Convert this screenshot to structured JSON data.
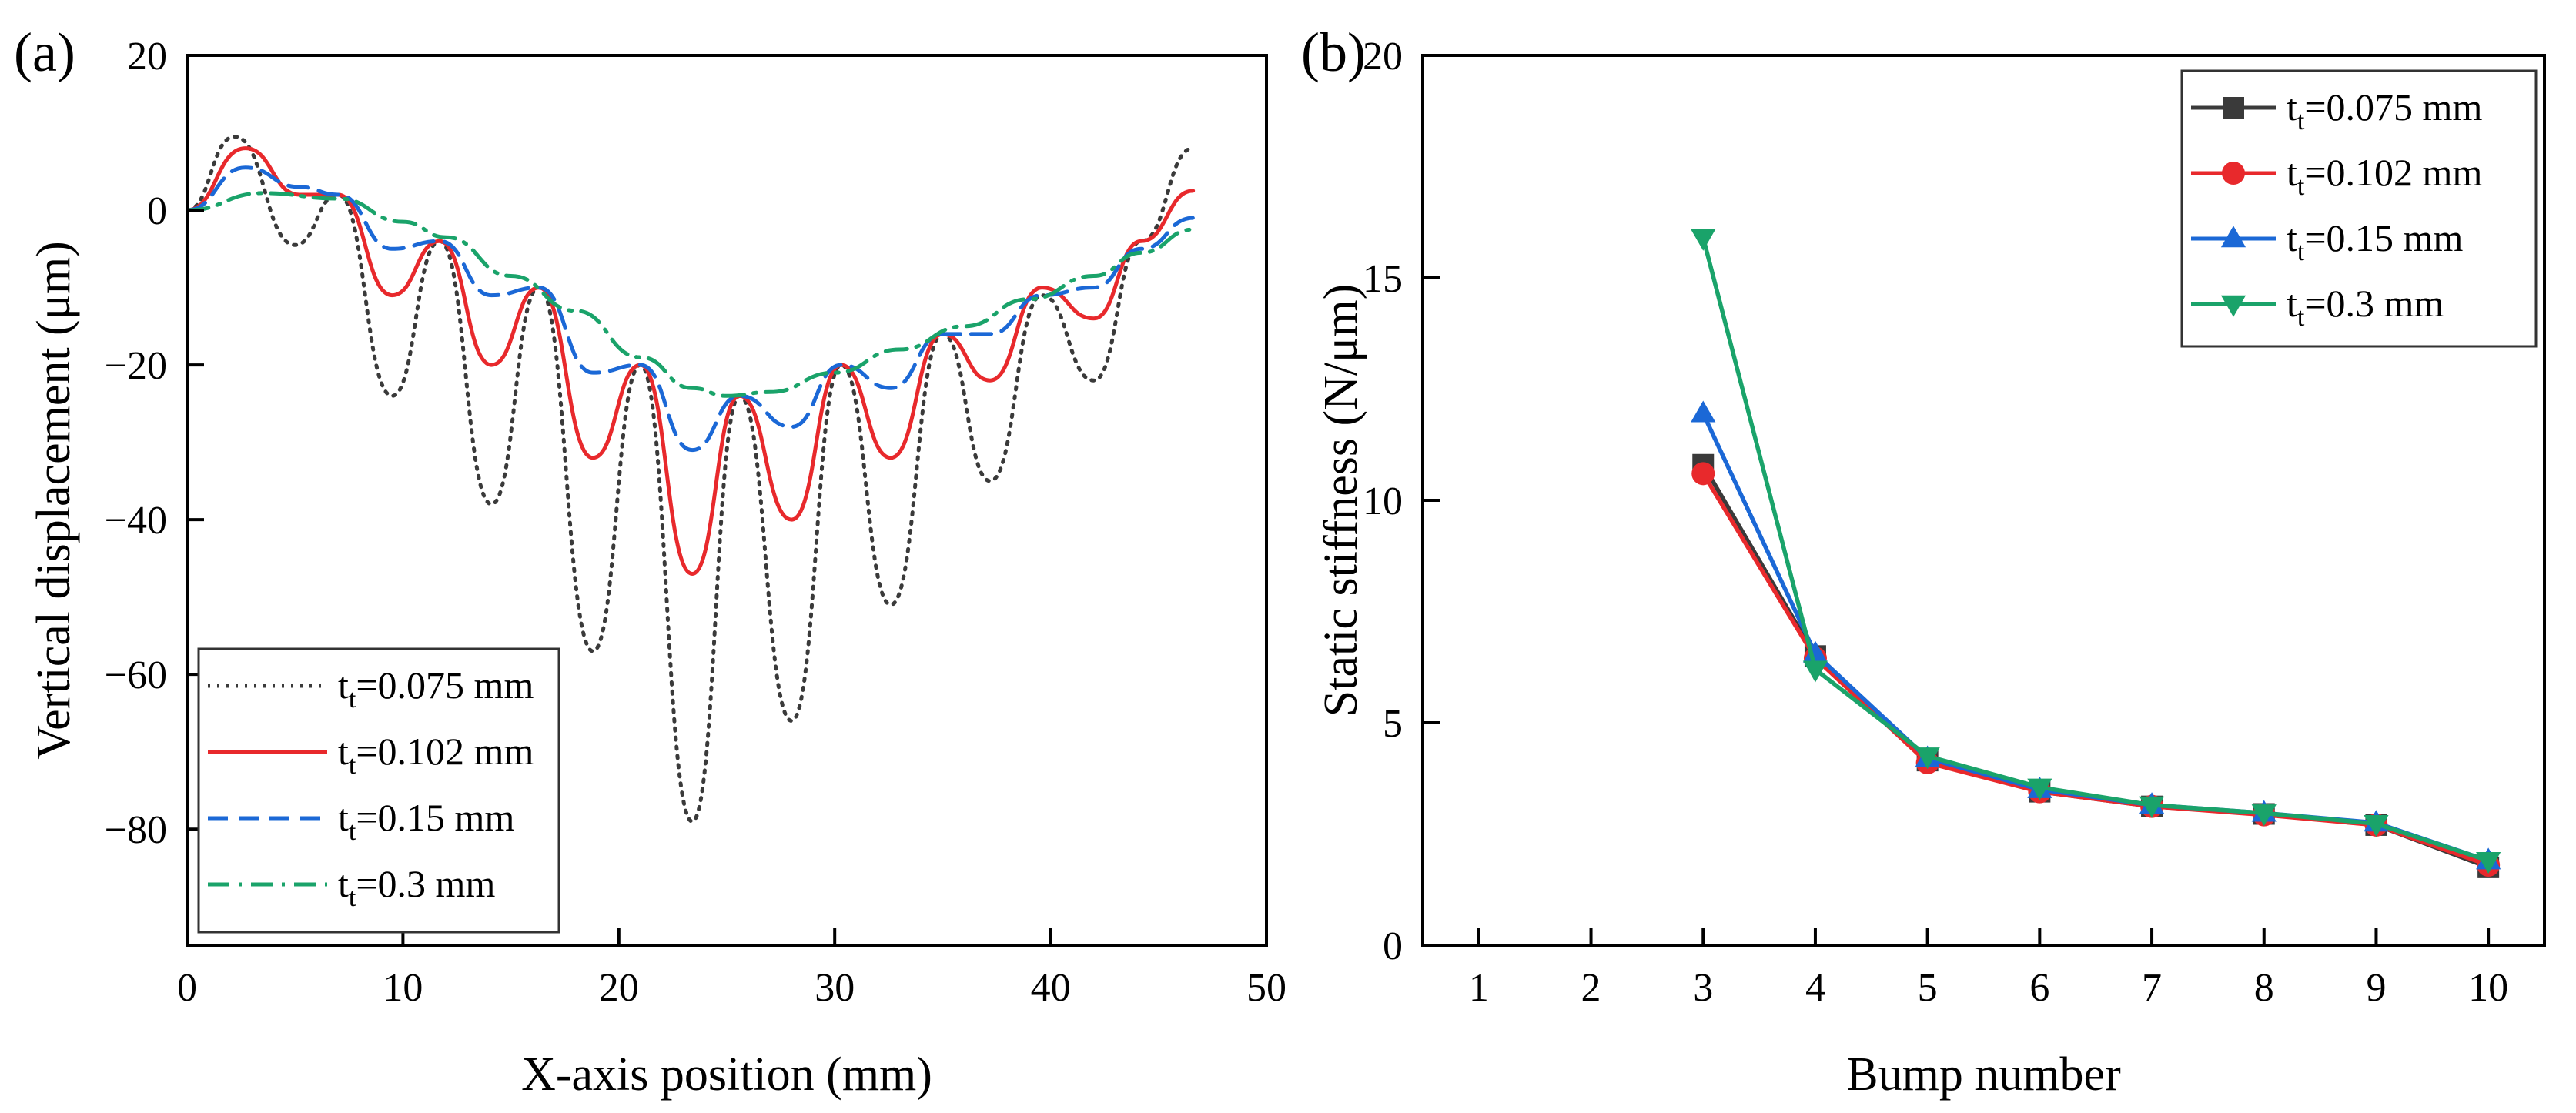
{
  "chart_data": [
    {
      "type": "line",
      "panel_label": "(a)",
      "title": "",
      "xlabel": "X-axis position (mm)",
      "ylabel": "Vertical displacement (μm)",
      "xlim": [
        0,
        50
      ],
      "ylim": [
        -95,
        20
      ],
      "xticks": [
        0,
        10,
        20,
        30,
        40,
        50
      ],
      "yticks": [
        20,
        0,
        -20,
        -40,
        -60,
        -80
      ],
      "xtick_labels": [
        "0",
        "10",
        "20",
        "30",
        "40",
        "50"
      ],
      "ytick_labels": [
        "20",
        "0",
        "−20",
        "−40",
        "−60",
        "−80"
      ],
      "grid": false,
      "legend_position": "lower-left",
      "series": [
        {
          "name": "tt=0.075 mm",
          "legend_main": "t",
          "legend_sub": "t",
          "legend_rest": "=0.075 mm",
          "color": "#3a3a3a",
          "style": "dotted",
          "points": [
            [
              0,
              0
            ],
            [
              2.2,
              9.5
            ],
            [
              5,
              -4.5
            ],
            [
              7,
              2
            ],
            [
              9.5,
              -24
            ],
            [
              11.7,
              -4
            ],
            [
              14.1,
              -38
            ],
            [
              16.3,
              -10
            ],
            [
              18.8,
              -57
            ],
            [
              21,
              -20
            ],
            [
              23.4,
              -79
            ],
            [
              25.6,
              -24
            ],
            [
              28,
              -66
            ],
            [
              30.3,
              -20
            ],
            [
              32.6,
              -51
            ],
            [
              35,
              -16
            ],
            [
              37.2,
              -35
            ],
            [
              39.6,
              -11
            ],
            [
              42,
              -22
            ],
            [
              44.2,
              -4
            ],
            [
              46.6,
              8
            ]
          ]
        },
        {
          "name": "tt=0.102 mm",
          "legend_main": "t",
          "legend_sub": "t",
          "legend_rest": "=0.102 mm",
          "color": "#e8292c",
          "style": "solid",
          "points": [
            [
              0,
              0
            ],
            [
              2.7,
              8
            ],
            [
              5.2,
              2
            ],
            [
              7,
              2
            ],
            [
              9.5,
              -11
            ],
            [
              11.7,
              -4
            ],
            [
              14.1,
              -20
            ],
            [
              16.3,
              -10
            ],
            [
              18.8,
              -32
            ],
            [
              21,
              -20
            ],
            [
              23.4,
              -47
            ],
            [
              25.6,
              -24
            ],
            [
              28,
              -40
            ],
            [
              30.3,
              -20
            ],
            [
              32.6,
              -32
            ],
            [
              35,
              -16
            ],
            [
              37.2,
              -22
            ],
            [
              39.6,
              -10
            ],
            [
              42,
              -14
            ],
            [
              44.2,
              -4
            ],
            [
              46.6,
              2.5
            ]
          ]
        },
        {
          "name": "tt=0.15 mm",
          "legend_main": "t",
          "legend_sub": "t",
          "legend_rest": "=0.15 mm",
          "color": "#1b68d6",
          "style": "dashed",
          "points": [
            [
              0,
              0
            ],
            [
              2.7,
              5.5
            ],
            [
              5.2,
              3
            ],
            [
              7,
              2
            ],
            [
              9.5,
              -5
            ],
            [
              11.7,
              -4
            ],
            [
              14.1,
              -11
            ],
            [
              16.3,
              -10
            ],
            [
              18.8,
              -21
            ],
            [
              21,
              -20
            ],
            [
              23.4,
              -31
            ],
            [
              25.6,
              -24
            ],
            [
              28,
              -28
            ],
            [
              30.3,
              -20
            ],
            [
              32.6,
              -23
            ],
            [
              35,
              -16
            ],
            [
              37.2,
              -16
            ],
            [
              39.6,
              -11
            ],
            [
              42,
              -10
            ],
            [
              44.2,
              -5
            ],
            [
              46.6,
              -1
            ]
          ]
        },
        {
          "name": "tt=0.3 mm",
          "legend_main": "t",
          "legend_sub": "t",
          "legend_rest": "=0.3 mm",
          "color": "#1aa36a",
          "style": "dashdot",
          "points": [
            [
              0,
              0
            ],
            [
              3.5,
              2.2
            ],
            [
              7,
              1.5
            ],
            [
              10,
              -1.5
            ],
            [
              12,
              -3.5
            ],
            [
              15,
              -8.5
            ],
            [
              18,
              -13
            ],
            [
              21,
              -19
            ],
            [
              23.4,
              -23
            ],
            [
              25,
              -24
            ],
            [
              27,
              -23.5
            ],
            [
              30,
              -21
            ],
            [
              33,
              -18
            ],
            [
              36,
              -15
            ],
            [
              39,
              -11.5
            ],
            [
              42,
              -8.5
            ],
            [
              44.2,
              -5.5
            ],
            [
              46.6,
              -2.5
            ]
          ]
        }
      ]
    },
    {
      "type": "line",
      "panel_label": "(b)",
      "title": "",
      "xlabel": "Bump number",
      "ylabel": "Static stiffness (N/μm)",
      "xlim": [
        0.5,
        10.5
      ],
      "ylim": [
        0,
        20
      ],
      "xticks": [
        1,
        2,
        3,
        4,
        5,
        6,
        7,
        8,
        9,
        10
      ],
      "yticks": [
        0,
        5,
        10,
        15,
        20
      ],
      "xtick_labels": [
        "1",
        "2",
        "3",
        "4",
        "5",
        "6",
        "7",
        "8",
        "9",
        "10"
      ],
      "ytick_labels": [
        "0",
        "5",
        "10",
        "15",
        "20"
      ],
      "grid": false,
      "legend_position": "top-right",
      "series": [
        {
          "name": "tt=0.075 mm",
          "legend_main": "t",
          "legend_sub": "t",
          "legend_rest": "=0.075 mm",
          "color": "#3a3a3a",
          "marker": "square",
          "x": [
            3,
            4,
            5,
            6,
            7,
            8,
            9,
            10
          ],
          "values": [
            10.8,
            6.5,
            4.15,
            3.45,
            3.12,
            2.95,
            2.7,
            1.75
          ]
        },
        {
          "name": "tt=0.102 mm",
          "legend_main": "t",
          "legend_sub": "t",
          "legend_rest": "=0.102 mm",
          "color": "#e8292c",
          "marker": "circle",
          "x": [
            3,
            4,
            5,
            6,
            7,
            8,
            9,
            10
          ],
          "values": [
            10.6,
            6.45,
            4.1,
            3.45,
            3.12,
            2.93,
            2.7,
            1.8
          ]
        },
        {
          "name": "tt=0.15 mm",
          "legend_main": "t",
          "legend_sub": "t",
          "legend_rest": "=0.15 mm",
          "color": "#1b68d6",
          "marker": "triangle-up",
          "x": [
            3,
            4,
            5,
            6,
            7,
            8,
            9,
            10
          ],
          "values": [
            11.95,
            6.55,
            4.2,
            3.5,
            3.15,
            2.97,
            2.75,
            1.9
          ]
        },
        {
          "name": "tt=0.3 mm",
          "legend_main": "t",
          "legend_sub": "t",
          "legend_rest": "=0.3 mm",
          "color": "#1aa36a",
          "marker": "triangle-down",
          "x": [
            3,
            4,
            5,
            6,
            7,
            8,
            9,
            10
          ],
          "values": [
            15.9,
            6.2,
            4.25,
            3.55,
            3.15,
            2.97,
            2.73,
            1.9
          ]
        }
      ]
    }
  ]
}
